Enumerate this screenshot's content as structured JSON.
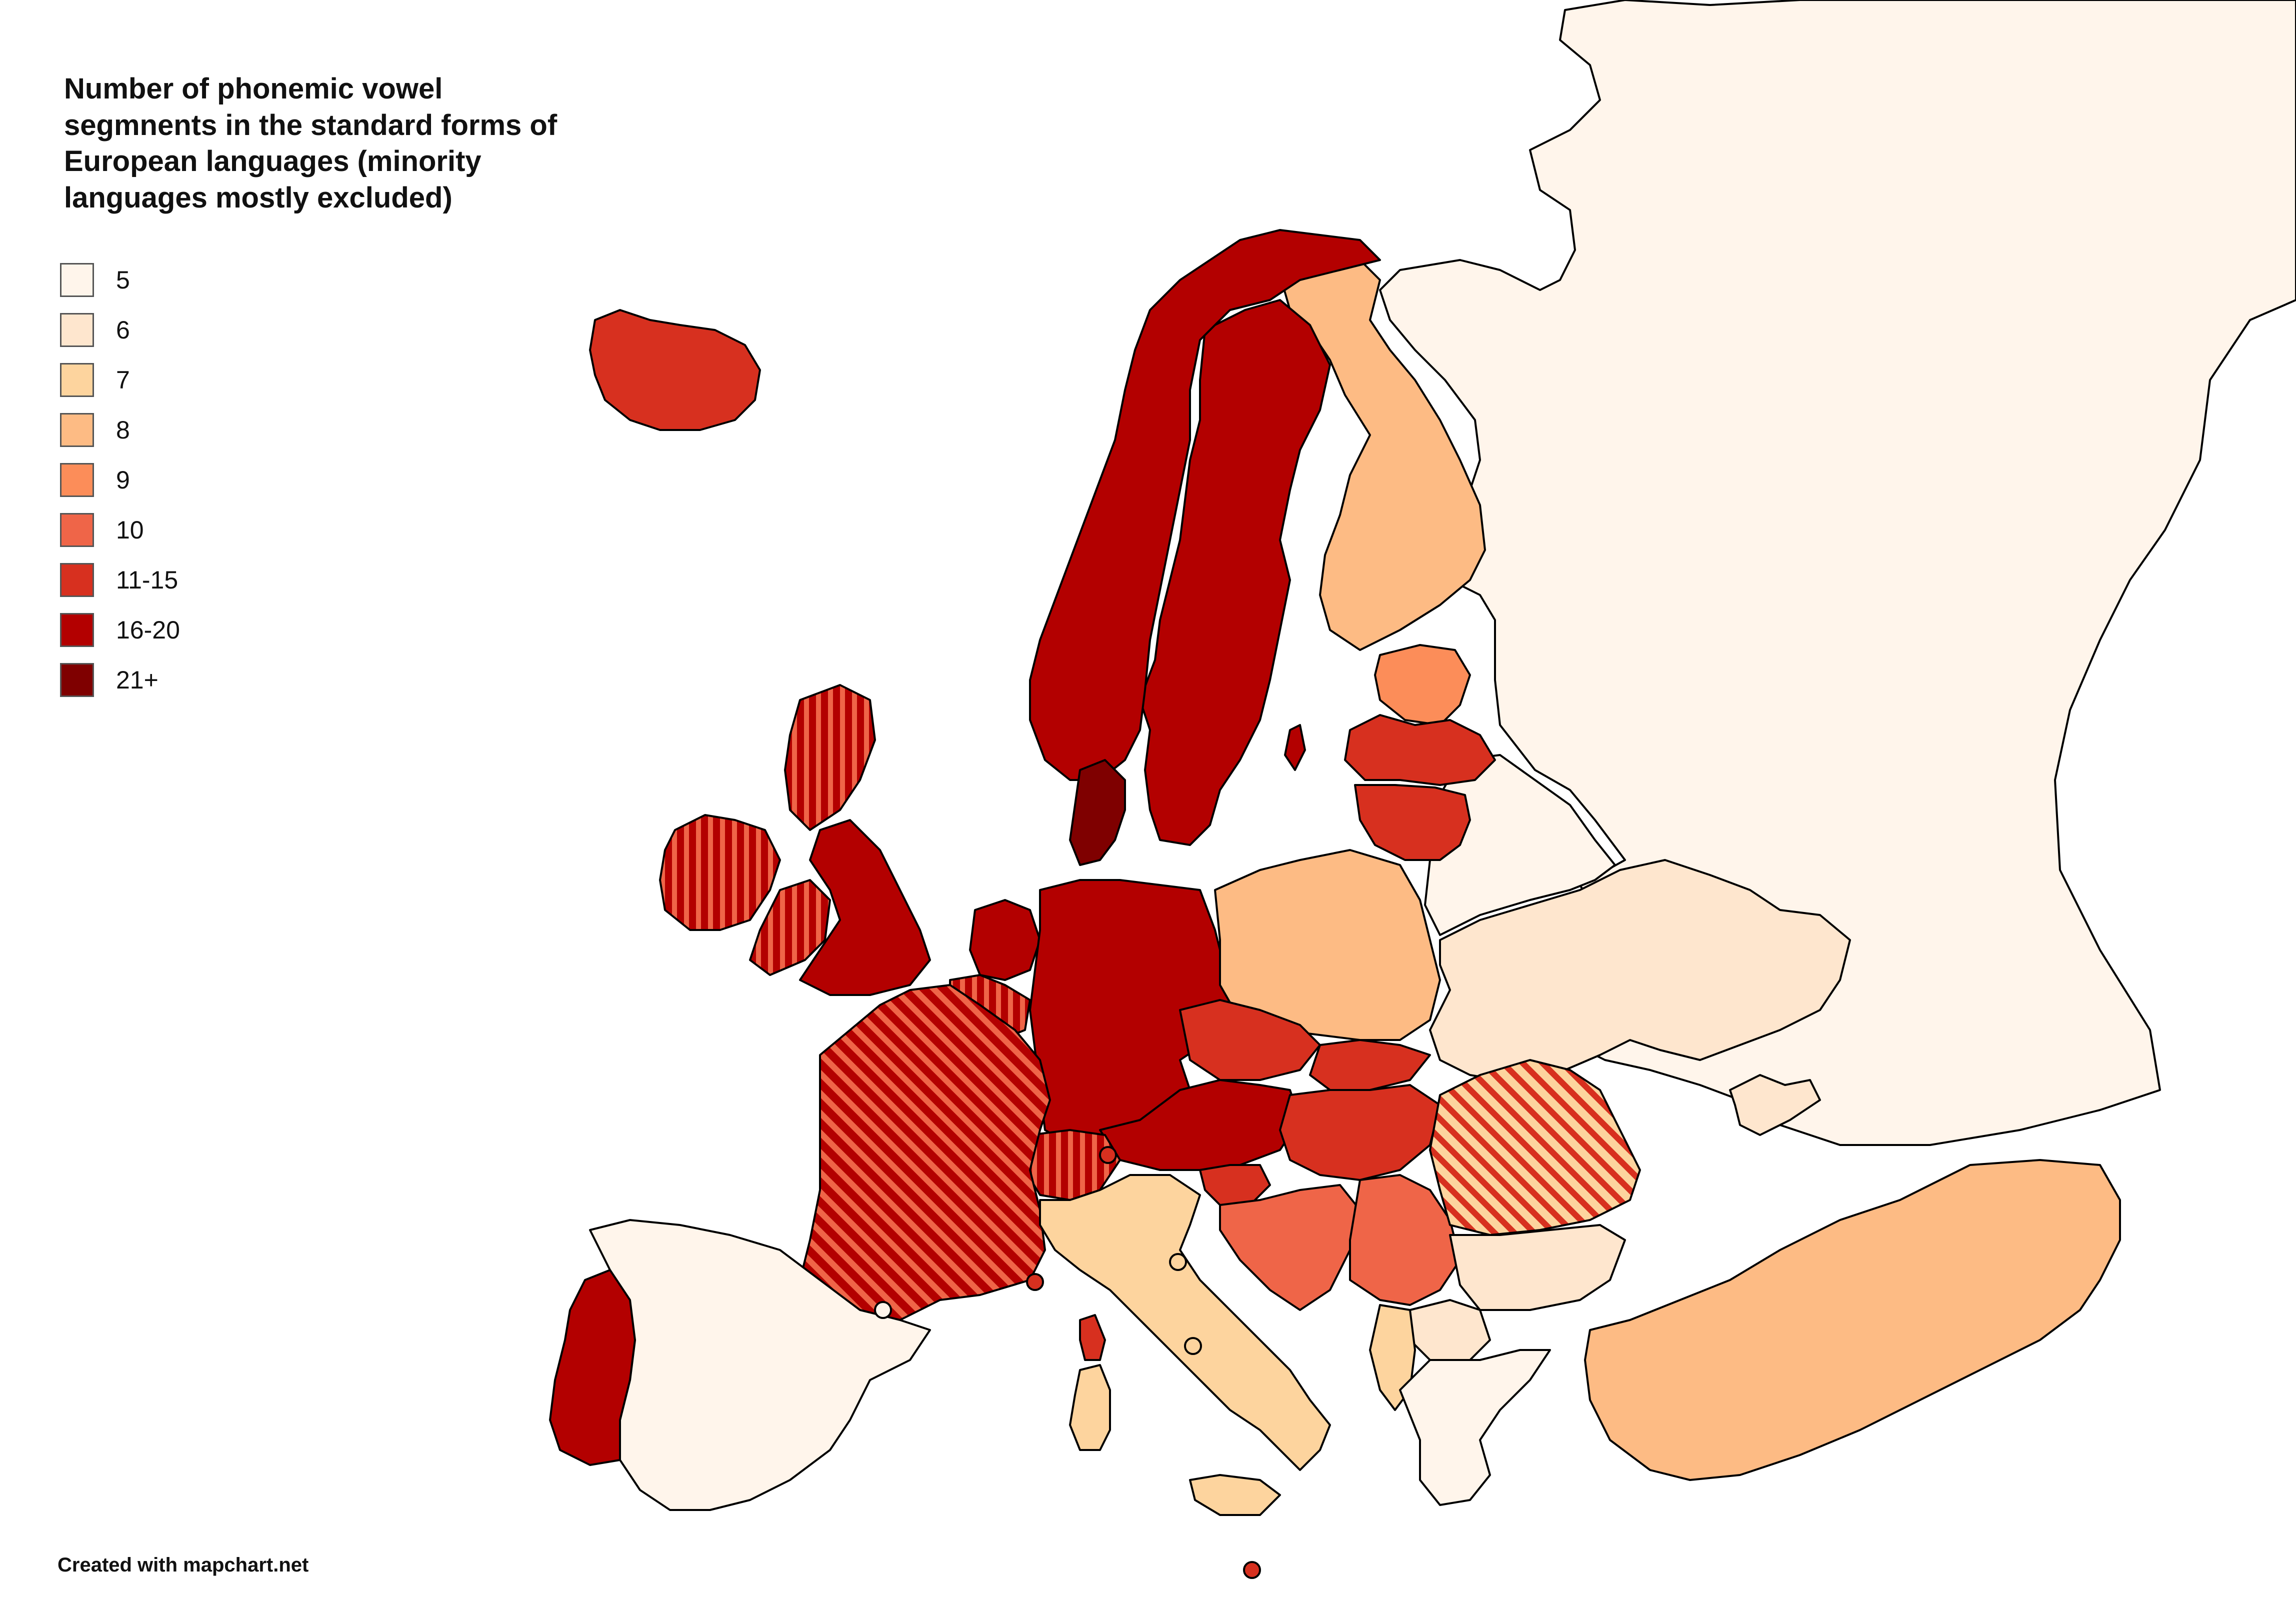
{
  "title": "Number of phonemic vowel segmnents in the standard forms of European languages (minority languages mostly excluded)",
  "legend": [
    {
      "label": "5",
      "color": "#fff5eb"
    },
    {
      "label": "6",
      "color": "#fee6ce"
    },
    {
      "label": "7",
      "color": "#fdd49e"
    },
    {
      "label": "8",
      "color": "#fdbb84"
    },
    {
      "label": "9",
      "color": "#fc8d59"
    },
    {
      "label": "10",
      "color": "#ef6548"
    },
    {
      "label": "11-15",
      "color": "#d7301f"
    },
    {
      "label": "16-20",
      "color": "#b30000"
    },
    {
      "label": "21+",
      "color": "#7f0000"
    }
  ],
  "credit": "Created with mapchart.net",
  "regions": [
    {
      "name": "Russia",
      "category": "5"
    },
    {
      "name": "Belarus",
      "category": "5"
    },
    {
      "name": "Spain",
      "category": "5"
    },
    {
      "name": "Greece",
      "category": "5"
    },
    {
      "name": "Ukraine",
      "category": "6"
    },
    {
      "name": "Bulgaria",
      "category": "6"
    },
    {
      "name": "Italy",
      "category": "7"
    },
    {
      "name": "Finland",
      "category": "8"
    },
    {
      "name": "Poland",
      "category": "8"
    },
    {
      "name": "Turkey",
      "category": "8"
    },
    {
      "name": "Estonia",
      "category": "9"
    },
    {
      "name": "Croatia",
      "category": "10"
    },
    {
      "name": "Serbia",
      "category": "10"
    },
    {
      "name": "Iceland",
      "category": "11-15"
    },
    {
      "name": "Latvia",
      "category": "11-15"
    },
    {
      "name": "Lithuania",
      "category": "11-15"
    },
    {
      "name": "Czechia",
      "category": "11-15"
    },
    {
      "name": "Slovakia",
      "category": "11-15"
    },
    {
      "name": "Hungary",
      "category": "11-15"
    },
    {
      "name": "Slovenia",
      "category": "11-15"
    },
    {
      "name": "Norway",
      "category": "16-20"
    },
    {
      "name": "Sweden",
      "category": "16-20"
    },
    {
      "name": "United Kingdom",
      "category": "16-20"
    },
    {
      "name": "Netherlands",
      "category": "16-20"
    },
    {
      "name": "Germany",
      "category": "16-20"
    },
    {
      "name": "Austria",
      "category": "16-20"
    },
    {
      "name": "Portugal",
      "category": "16-20"
    },
    {
      "name": "Denmark",
      "category": "21+"
    }
  ]
}
